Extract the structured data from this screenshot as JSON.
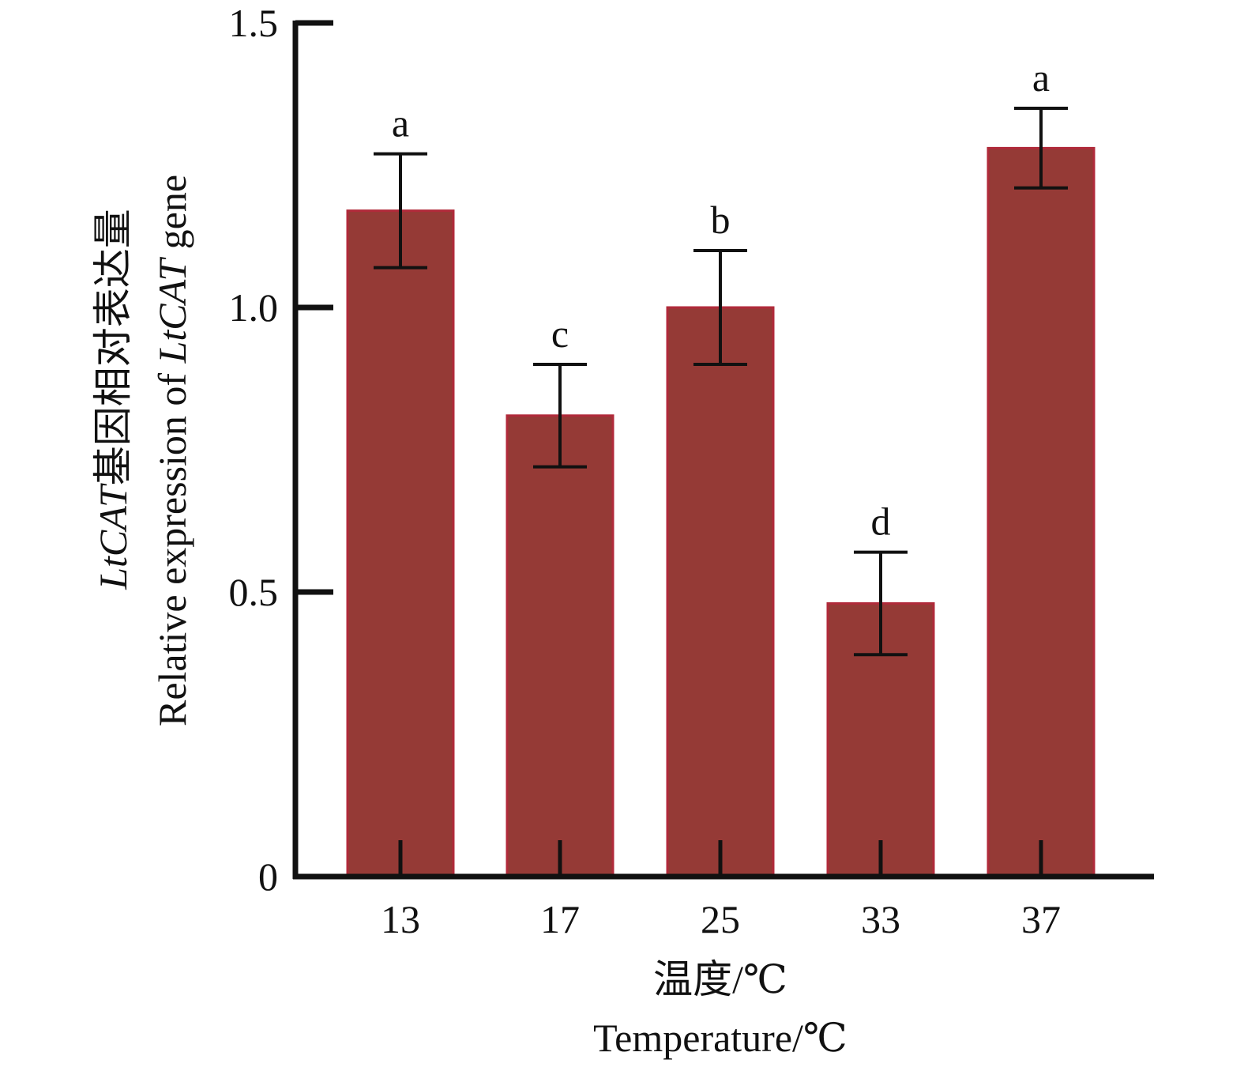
{
  "chart_data": {
    "type": "bar",
    "categories": [
      "13",
      "17",
      "25",
      "33",
      "37"
    ],
    "values": [
      1.17,
      0.81,
      1.0,
      0.48,
      1.28
    ],
    "error": [
      0.1,
      0.09,
      0.1,
      0.09,
      0.07
    ],
    "significance": [
      "a",
      "c",
      "b",
      "d",
      "a"
    ],
    "xlabel_cn": "温度/℃",
    "xlabel_en": "Temperature/℃",
    "ylabel_cn_italic": "LtCAT",
    "ylabel_cn_rest": "基因相对表达量",
    "ylabel_en_start": "Relative expression of ",
    "ylabel_en_italic": "LtCAT",
    "ylabel_en_end": " gene",
    "ylim": [
      0,
      1.5
    ],
    "yticks": [
      {
        "value": 0,
        "label": "0"
      },
      {
        "value": 0.5,
        "label": "0.5"
      },
      {
        "value": 1.0,
        "label": "1.0"
      },
      {
        "value": 1.5,
        "label": "1.5"
      }
    ],
    "bar_color": "#953a36",
    "bar_edge_color": "#b02a3a",
    "grid": false,
    "legend": "none"
  }
}
